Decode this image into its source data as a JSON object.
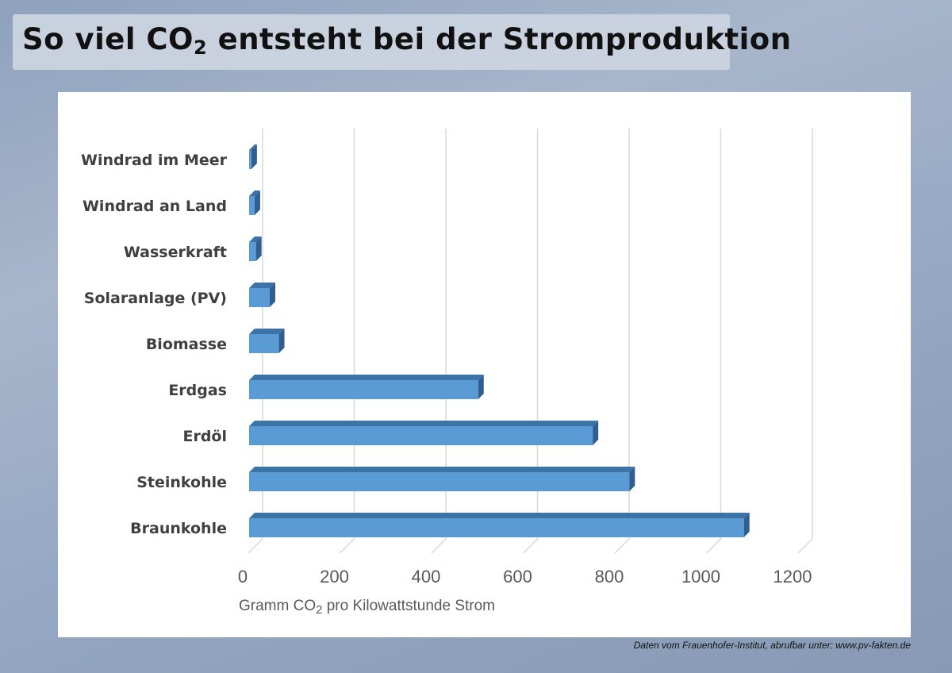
{
  "title": {
    "before": "So viel CO",
    "sub": "2",
    "after": " entsteht bei der Stromproduktion"
  },
  "source_note": "Daten vom Frauenhofer-Institut, abrufbar unter: www.pv-fakten.de",
  "chart_data": {
    "type": "bar",
    "orientation": "horizontal",
    "style": "3d",
    "categories": [
      "Windrad im Meer",
      "Windrad an Land",
      "Wasserkraft",
      "Solaranlage (PV)",
      "Biomasse",
      "Erdgas",
      "Erdöl",
      "Steinkohle",
      "Braunkohle"
    ],
    "values": [
      5,
      12,
      15,
      45,
      65,
      500,
      750,
      830,
      1080
    ],
    "xlabel": "Gramm CO2 pro Kilowattstunde Strom",
    "xlabel_parts": {
      "before": "Gramm CO",
      "sub": "2",
      "after": " pro Kilowattstunde Strom"
    },
    "xlim": [
      0,
      1200
    ],
    "xticks": [
      "0",
      "200",
      "400",
      "600",
      "800",
      "1000",
      "1200"
    ],
    "grid": true,
    "bar_color": "#5b9bd5",
    "bar_side_color": "#2f5f8f",
    "bar_top_color": "#3d74a8"
  }
}
